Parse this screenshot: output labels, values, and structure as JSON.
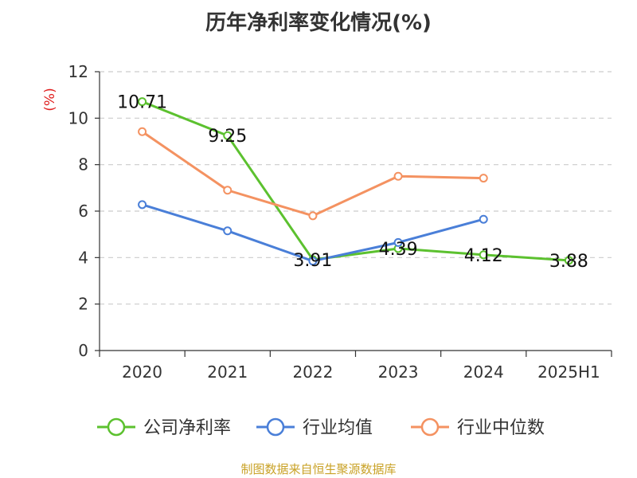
{
  "title": "历年净利率变化情况(%)",
  "source": "制图数据来自恒生聚源数据库",
  "chart_data": {
    "type": "line",
    "title": "历年净利率变化情况(%)",
    "ylabel": "(%)",
    "xlabel": "",
    "ylim": [
      0,
      12
    ],
    "yticks": [
      "0",
      "2",
      "4",
      "6",
      "8",
      "10",
      "12"
    ],
    "categories": [
      "2020",
      "2021",
      "2022",
      "2023",
      "2024",
      "2025H1"
    ],
    "grid": true,
    "legend_position": "bottom",
    "series": [
      {
        "name": "公司净利率",
        "color": "#5cc12f",
        "values": [
          10.71,
          9.25,
          3.91,
          4.39,
          4.12,
          3.88
        ],
        "labels": [
          "10.71",
          "9.25",
          "3.91",
          "4.39",
          "4.12",
          "3.88"
        ]
      },
      {
        "name": "行业均值",
        "color": "#4a7fd8",
        "values": [
          6.28,
          5.15,
          3.85,
          4.65,
          5.65,
          null
        ]
      },
      {
        "name": "行业中位数",
        "color": "#f49261",
        "values": [
          9.42,
          6.9,
          5.8,
          7.5,
          7.42,
          null
        ]
      }
    ]
  }
}
